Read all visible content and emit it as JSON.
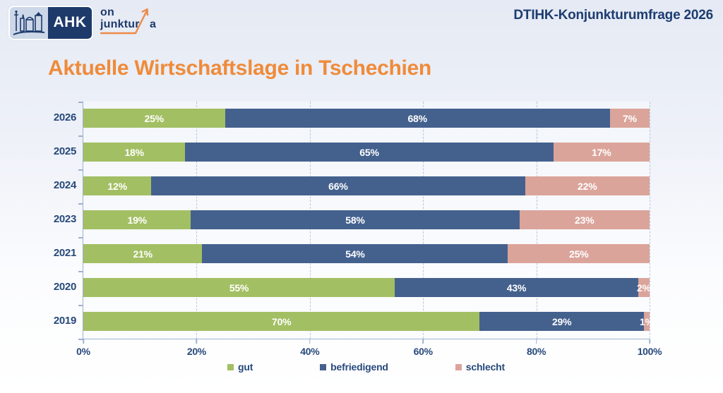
{
  "header": {
    "logo": {
      "ahk_text": "AHK",
      "word_line1": "on",
      "word_line2": "junktur",
      "word_line2_suffix": "a"
    },
    "survey_title": "DTIHK-Konjunkturumfrage 2026"
  },
  "page_title": "Aktuelle Wirtschaftslage in Tschechien",
  "colors": {
    "gut": "#a3bf63",
    "befriedigend": "#44618e",
    "schlecht": "#dba49b",
    "navy_text": "#27497b",
    "orange_title": "#ef8b3a"
  },
  "chart_data": {
    "type": "bar",
    "orientation": "horizontal",
    "stacked": true,
    "title": "Aktuelle Wirtschaftslage in Tschechien",
    "categories": [
      "2026",
      "2025",
      "2024",
      "2023",
      "2021",
      "2020",
      "2019"
    ],
    "series": [
      {
        "name": "gut",
        "color": "#a3bf63",
        "values": [
          25,
          18,
          12,
          19,
          21,
          55,
          70
        ]
      },
      {
        "name": "befriedigend",
        "color": "#44618e",
        "values": [
          68,
          65,
          66,
          58,
          54,
          43,
          29
        ]
      },
      {
        "name": "schlecht",
        "color": "#dba49b",
        "values": [
          7,
          17,
          22,
          23,
          25,
          2,
          1
        ]
      }
    ],
    "value_suffix": "%",
    "xlim": [
      0,
      100
    ],
    "x_ticks": [
      "0%",
      "20%",
      "40%",
      "60%",
      "80%",
      "100%"
    ],
    "grid": "dashed-vertical",
    "legend_position": "bottom",
    "legend_entries": [
      "gut",
      "befriedigend",
      "schlecht"
    ]
  }
}
